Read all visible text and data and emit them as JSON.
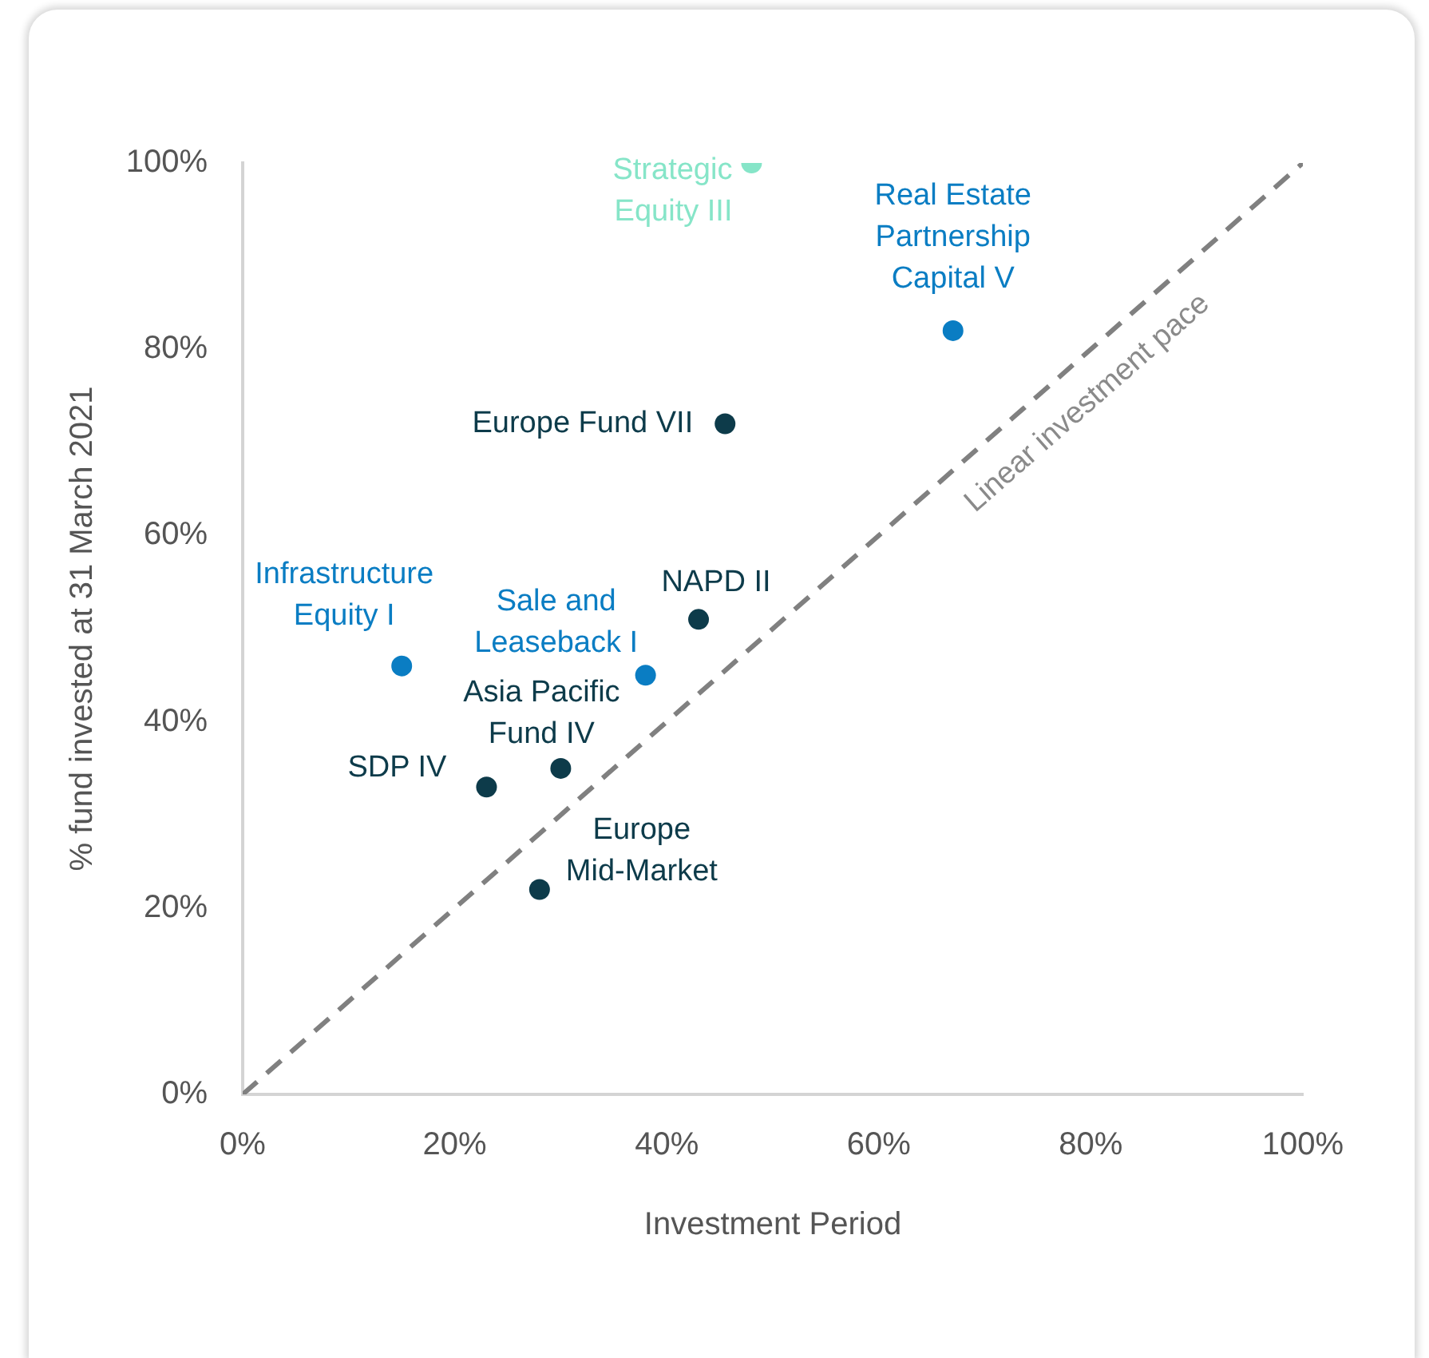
{
  "chart_data": {
    "type": "scatter",
    "xlabel": "Investment Period",
    "ylabel": "% fund invested at 31 March 2021",
    "xlim": [
      0,
      100
    ],
    "ylim": [
      0,
      100
    ],
    "xticks": [
      {
        "value": 0,
        "label": "0%"
      },
      {
        "value": 20,
        "label": "20%"
      },
      {
        "value": 40,
        "label": "40%"
      },
      {
        "value": 60,
        "label": "60%"
      },
      {
        "value": 80,
        "label": "80%"
      },
      {
        "value": 100,
        "label": "100%"
      }
    ],
    "yticks": [
      {
        "value": 0,
        "label": "0%"
      },
      {
        "value": 20,
        "label": "20%"
      },
      {
        "value": 40,
        "label": "40%"
      },
      {
        "value": 60,
        "label": "60%"
      },
      {
        "value": 80,
        "label": "80%"
      },
      {
        "value": 100,
        "label": "100%"
      }
    ],
    "marker": "circle",
    "series": [
      {
        "type": "scatter",
        "x": [
          48,
          67,
          45.5,
          43,
          15,
          38,
          30,
          23,
          28
        ],
        "values": [
          100,
          82,
          72,
          51,
          46,
          45,
          35,
          33,
          22
        ],
        "colors": [
          "#86e5c8",
          "#0a7dc3",
          "#0d3b4a",
          "#0d3b4a",
          "#0a7dc3",
          "#0a7dc3",
          "#0d3b4a",
          "#0d3b4a",
          "#0d3b4a"
        ]
      },
      {
        "type": "line",
        "name": "Linear investment pace",
        "color": "#808080",
        "line_style": "dashed",
        "marker": "none",
        "x": [
          0,
          100
        ],
        "values": [
          0,
          100
        ]
      }
    ],
    "annotations": [
      {
        "text": "Strategic Equity III",
        "x": 48,
        "y": 100
      },
      {
        "text": "Real Estate Partnership Capital V",
        "x": 67,
        "y": 82
      },
      {
        "text": "Europe Fund VII",
        "x": 45.5,
        "y": 72
      },
      {
        "text": "NAPD II",
        "x": 43,
        "y": 51
      },
      {
        "text": "Infrastructure Equity I",
        "x": 15,
        "y": 46
      },
      {
        "text": "Sale and Leaseback I",
        "x": 38,
        "y": 45
      },
      {
        "text": "Asia Pacific Fund IV",
        "x": 30,
        "y": 35
      },
      {
        "text": "SDP IV",
        "x": 23,
        "y": 33
      },
      {
        "text": "Europe Mid-Market",
        "x": 28,
        "y": 22
      }
    ]
  }
}
